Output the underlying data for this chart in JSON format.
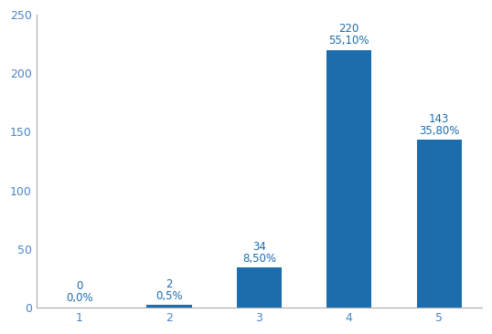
{
  "categories": [
    1,
    2,
    3,
    4,
    5
  ],
  "values": [
    0,
    2,
    34,
    220,
    143
  ],
  "percentages": [
    "0,0%",
    "0,5%",
    "8,50%",
    "55,10%",
    "35,80%"
  ],
  "bar_color": "#1B6DAE",
  "label_color": "#1B6DAE",
  "background_color": "#ffffff",
  "ylim": [
    0,
    250
  ],
  "yticks": [
    0,
    50,
    100,
    150,
    200,
    250
  ],
  "bar_width": 0.5,
  "annotation_fontsize": 8.5,
  "tick_fontsize": 9,
  "spine_color": "#AAAAAA"
}
